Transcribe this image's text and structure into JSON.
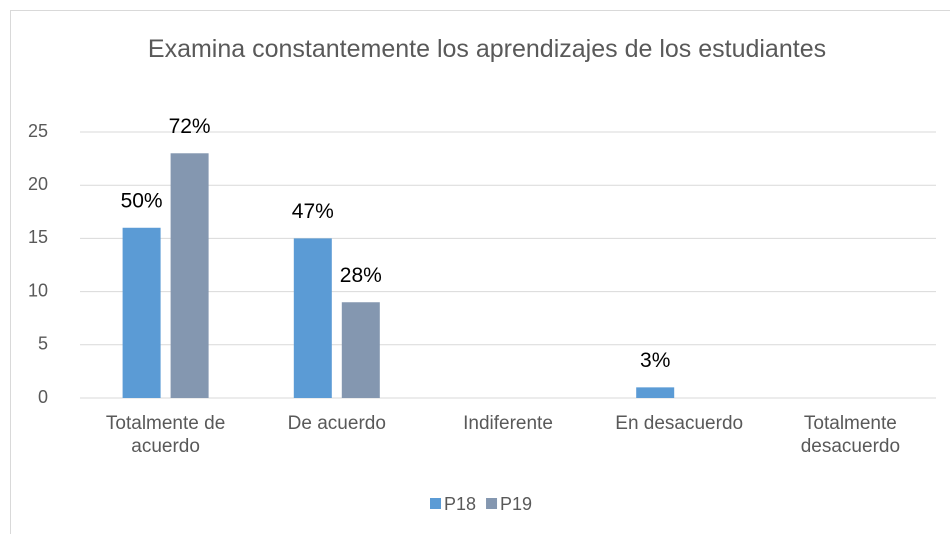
{
  "chart_data": {
    "type": "bar",
    "title": "Examina constantemente los aprendizajes de los estudiantes",
    "categories": [
      "Totalmente de acuerdo",
      "De acuerdo",
      "Indiferente",
      "En desacuerdo",
      "Totalmente desacuerdo"
    ],
    "series": [
      {
        "name": "P18",
        "color": "#5b9bd5",
        "values": [
          16,
          15,
          0,
          1,
          0
        ],
        "value_labels": [
          "50%",
          "47%",
          null,
          "3%",
          null
        ]
      },
      {
        "name": "P19",
        "color": "#8497b0",
        "values": [
          23,
          9,
          0,
          0,
          0
        ],
        "value_labels": [
          "72%",
          "28%",
          null,
          null,
          null
        ]
      }
    ],
    "ylim": [
      0,
      25
    ],
    "yticks": [
      0,
      5,
      10,
      15,
      20,
      25
    ],
    "grid": true,
    "legend": "bottom"
  }
}
